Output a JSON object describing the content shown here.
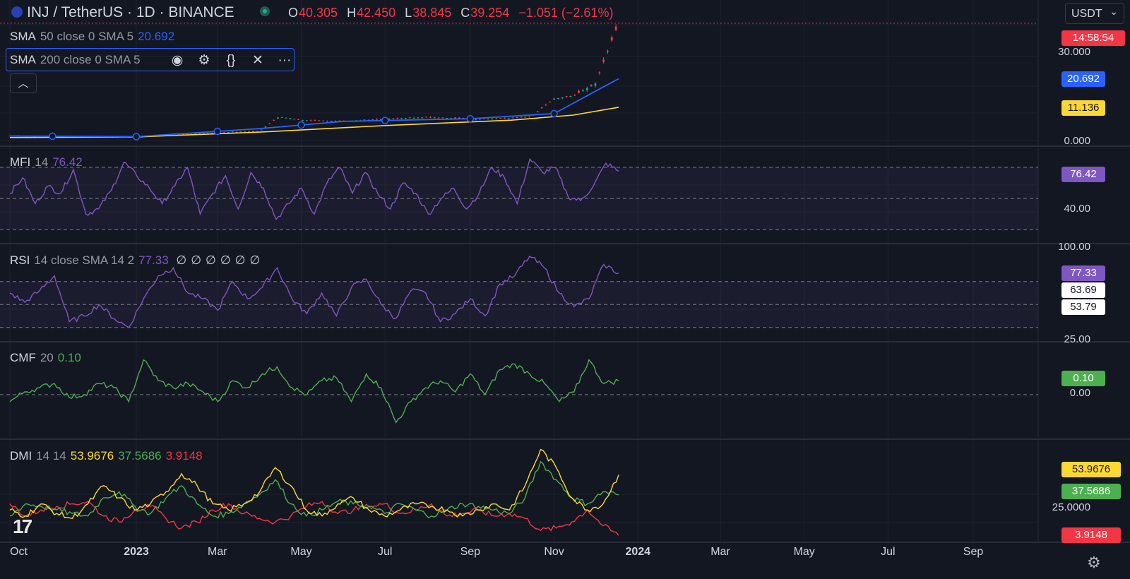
{
  "header": {
    "symbol": "INJ / TetherUS · 1D · BINANCE",
    "ohlc": {
      "o_label": "O",
      "o": "40.305",
      "h_label": "H",
      "h": "42.450",
      "l_label": "L",
      "l": "38.845",
      "c_label": "C",
      "c": "39.254",
      "change": "−1.051 (−2.61%)"
    },
    "currency": "USDT"
  },
  "legends": {
    "sma50": {
      "name": "SMA",
      "params": "50 close 0 SMA 5",
      "value": "20.692"
    },
    "sma200": {
      "name": "SMA",
      "params": "200 close 0 SMA 5"
    },
    "mfi": {
      "name": "MFI",
      "params": "14",
      "value": "76.42"
    },
    "rsi": {
      "name": "RSI",
      "params": "14 close SMA 14 2",
      "value": "77.33",
      "nulls": [
        "∅",
        "∅",
        "∅",
        "∅",
        "∅",
        "∅"
      ]
    },
    "cmf": {
      "name": "CMF",
      "params": "20",
      "value": "0.10"
    },
    "dmi": {
      "name": "DMI",
      "params": "14 14",
      "adx": "53.9676",
      "pdi": "37.5686",
      "mdi": "3.9148"
    }
  },
  "price_axis": {
    "ticks": [
      "30.000",
      "0.000"
    ],
    "badges": {
      "countdown": "14:58:54",
      "sma50": "20.692",
      "sma200": "11.136"
    }
  },
  "mfi_axis": {
    "ticks": [
      "40.00"
    ],
    "badge": "76.42"
  },
  "rsi_axis": {
    "ticks": [
      "100.00",
      "25.00"
    ],
    "badges": [
      "77.33",
      "63.69",
      "53.79"
    ]
  },
  "cmf_axis": {
    "ticks": [
      "0.00"
    ],
    "badge": "0.10"
  },
  "dmi_axis": {
    "ticks": [
      "25.0000"
    ],
    "badges": [
      "53.9676",
      "37.5686",
      "3.9148"
    ]
  },
  "time_axis": [
    "Oct",
    "2023",
    "Mar",
    "May",
    "Jul",
    "Sep",
    "Nov",
    "2024",
    "Mar",
    "May",
    "Jul",
    "Sep"
  ],
  "colors": {
    "bg": "#131722",
    "up": "#26a69a",
    "down": "#f23645",
    "sma50": "#2962ff",
    "sma200": "#fdd835",
    "mfi": "#7e57c2",
    "rsi": "#7e57c2",
    "cmf": "#4caf50",
    "adx": "#fdd835",
    "pdi": "#4caf50",
    "mdi": "#f23645"
  },
  "chart_data": [
    {
      "type": "candlestick",
      "title": "INJ / TetherUS · 1D · BINANCE",
      "x_range": [
        "2022-10-01",
        "2024-09-30"
      ],
      "ylim": [
        0,
        42.45
      ],
      "close_points": [
        [
          "2022-10-01",
          1.6
        ],
        [
          "2022-11-01",
          1.3
        ],
        [
          "2022-12-01",
          1.2
        ],
        [
          "2023-01-01",
          1.2
        ],
        [
          "2023-02-01",
          2.0
        ],
        [
          "2023-03-01",
          2.6
        ],
        [
          "2023-04-01",
          3.3
        ],
        [
          "2023-04-15",
          8.0
        ],
        [
          "2023-05-01",
          6.8
        ],
        [
          "2023-06-01",
          6.4
        ],
        [
          "2023-07-01",
          7.2
        ],
        [
          "2023-08-01",
          7.8
        ],
        [
          "2023-09-01",
          7.2
        ],
        [
          "2023-10-01",
          7.4
        ],
        [
          "2023-10-15",
          8.0
        ],
        [
          "2023-11-01",
          14.0
        ],
        [
          "2023-11-15",
          15.0
        ],
        [
          "2023-12-01",
          19.0
        ],
        [
          "2023-12-10",
          30.0
        ],
        [
          "2023-12-18",
          39.254
        ]
      ],
      "sma50_points": [
        [
          "2022-10-01",
          1.5
        ],
        [
          "2023-01-01",
          1.3
        ],
        [
          "2023-04-01",
          4.0
        ],
        [
          "2023-06-01",
          6.4
        ],
        [
          "2023-09-01",
          7.3
        ],
        [
          "2023-11-01",
          9.0
        ],
        [
          "2023-12-18",
          20.692
        ]
      ],
      "sma200_points": [
        [
          "2022-10-01",
          1.0
        ],
        [
          "2023-01-01",
          1.2
        ],
        [
          "2023-04-01",
          2.8
        ],
        [
          "2023-07-01",
          5.0
        ],
        [
          "2023-10-01",
          6.8
        ],
        [
          "2023-11-15",
          8.5
        ],
        [
          "2023-12-18",
          11.136
        ]
      ]
    },
    {
      "type": "line",
      "title": "MFI 14",
      "series": [
        {
          "name": "MFI",
          "values": [
            55,
            70,
            45,
            62,
            55,
            78,
            35,
            40,
            58,
            85,
            72,
            60,
            45,
            62,
            80,
            35,
            55,
            72,
            40,
            75,
            60,
            30,
            45,
            60,
            35,
            65,
            80,
            55,
            75,
            55,
            40,
            65,
            55,
            35,
            50,
            60,
            40,
            55,
            80,
            70,
            45,
            88,
            75,
            80,
            52,
            48,
            62,
            84,
            76.42
          ]
        }
      ],
      "reference_lines": [
        80,
        50,
        20
      ]
    },
    {
      "type": "line",
      "title": "RSI 14 close SMA 14 2",
      "series": [
        {
          "name": "RSI",
          "values": [
            60,
            52,
            62,
            75,
            35,
            40,
            50,
            38,
            30,
            55,
            75,
            82,
            60,
            55,
            45,
            70,
            55,
            65,
            82,
            55,
            42,
            60,
            40,
            65,
            72,
            50,
            38,
            62,
            60,
            35,
            42,
            55,
            40,
            68,
            75,
            92,
            82,
            60,
            48,
            55,
            85,
            77.33
          ]
        }
      ],
      "reference_lines": [
        70,
        50,
        30
      ]
    },
    {
      "type": "line",
      "title": "CMF 20",
      "series": [
        {
          "name": "CMF",
          "values": [
            -0.05,
            0.02,
            0.05,
            0.08,
            -0.02,
            0.0,
            0.08,
            0.05,
            -0.05,
            0.25,
            0.1,
            0.05,
            0.08,
            0.02,
            -0.05,
            0.1,
            0.05,
            0.15,
            0.2,
            0.05,
            0.0,
            0.1,
            0.12,
            -0.05,
            0.15,
            0.05,
            -0.2,
            -0.05,
            0.05,
            0.1,
            0.02,
            0.15,
            0.0,
            0.18,
            0.22,
            0.15,
            0.08,
            -0.05,
            0.02,
            0.25,
            0.08,
            0.1
          ]
        }
      ],
      "reference_lines": [
        0
      ]
    },
    {
      "type": "line",
      "title": "DMI 14 14",
      "series": [
        {
          "name": "ADX",
          "values": [
            25,
            20,
            30,
            22,
            18,
            30,
            45,
            35,
            25,
            30,
            40,
            55,
            45,
            30,
            25,
            30,
            40,
            60,
            45,
            25,
            20,
            30,
            35,
            25,
            20,
            25,
            30,
            28,
            25,
            20,
            25,
            30,
            25,
            45,
            75,
            60,
            35,
            25,
            30,
            54
          ]
        },
        {
          "name": "+DI",
          "values": [
            20,
            30,
            28,
            25,
            22,
            20,
            35,
            40,
            28,
            22,
            35,
            45,
            30,
            20,
            22,
            30,
            38,
            50,
            30,
            20,
            25,
            32,
            30,
            28,
            22,
            30,
            25,
            20,
            25,
            30,
            28,
            25,
            22,
            35,
            65,
            50,
            35,
            30,
            40,
            37.5686
          ]
        },
        {
          "name": "-DI",
          "values": [
            30,
            20,
            25,
            28,
            30,
            32,
            20,
            15,
            25,
            28,
            18,
            10,
            15,
            25,
            30,
            22,
            18,
            15,
            20,
            28,
            32,
            22,
            25,
            28,
            30,
            22,
            25,
            30,
            20,
            22,
            25,
            20,
            22,
            18,
            8,
            10,
            15,
            25,
            12,
            3.9148
          ]
        }
      ],
      "reference_lines": [
        25
      ]
    }
  ]
}
